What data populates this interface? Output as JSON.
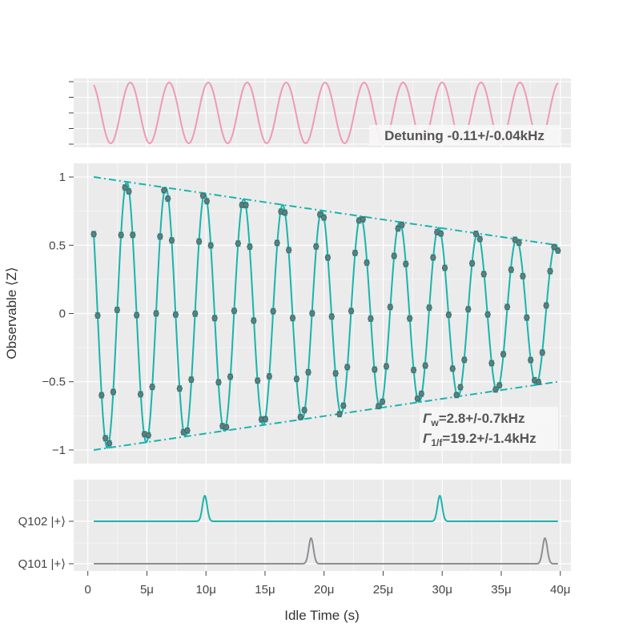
{
  "chart_data": {
    "type": "line",
    "colors": {
      "panel_bg": "#ebebeb",
      "grid": "#ffffff",
      "fit": "#19b4ad",
      "marker_fill": "#5f7f7f",
      "errorbar": "#19b4ad",
      "detuning_wave": "#ee9ab4",
      "q101_trace": "#8e8e93",
      "label_box": "#f7f7f7"
    },
    "top_panel": {
      "annotation": "Detuning -0.11+/-0.04kHz",
      "periods_us": 3.3,
      "y_ticks": [
        "",
        "",
        "",
        "",
        ""
      ]
    },
    "main_panel": {
      "ylabel": "Observable ⟨Z⟩",
      "ylim": [
        -1.1,
        1.1
      ],
      "y_ticks": [
        1,
        0.5,
        0,
        -0.5,
        -1
      ],
      "y_tick_labels": [
        "1",
        "0.5",
        "0",
        "−0.5",
        "−1"
      ],
      "period_us": 3.3,
      "phase_offset_us": 0.5,
      "envelope": {
        "start_us": 0.5,
        "start": 1.0,
        "end_us": 39.8,
        "end": 0.5
      },
      "annotation_line1_sym": "Γ",
      "annotation_line1_sub": "w",
      "annotation_line1_val": "=2.8+/-0.7kHz",
      "annotation_line2_sym": "Γ",
      "annotation_line2_sub": "1/f",
      "annotation_line2_val": "=19.2+/-1.4kHz",
      "n_points": 120,
      "x_start_us": 0.5,
      "x_end_us": 39.8,
      "errorbar_halfwidth": 0.02
    },
    "bottom_panel": {
      "channels": [
        {
          "label": "Q102 |+⟩",
          "pulses_us": [
            9.9,
            29.8
          ]
        },
        {
          "label": "Q101 |+⟩",
          "pulses_us": [
            18.9,
            38.7
          ]
        }
      ]
    },
    "x_axis": {
      "xlabel": "Idle Time (s)",
      "xlim": [
        -1.2,
        40.9
      ],
      "ticks_us": [
        0,
        5,
        10,
        15,
        20,
        25,
        30,
        35,
        40
      ],
      "tick_labels": [
        "0",
        "5μ",
        "10μ",
        "15μ",
        "20μ",
        "25μ",
        "30μ",
        "35μ",
        "40μ"
      ]
    }
  }
}
